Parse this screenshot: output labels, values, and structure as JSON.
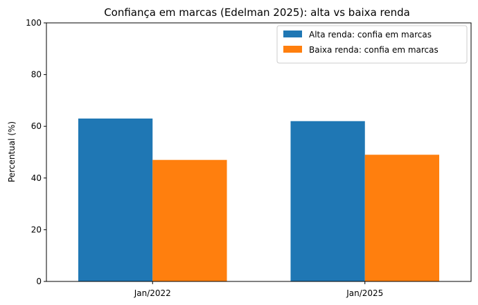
{
  "chart_data": {
    "type": "bar",
    "title": "Confiança em marcas (Edelman 2025): alta vs baixa renda",
    "xlabel": "",
    "ylabel": "Percentual (%)",
    "ylim": [
      0,
      100
    ],
    "yticks": [
      0,
      20,
      40,
      60,
      80,
      100
    ],
    "categories": [
      "Jan/2022",
      "Jan/2025"
    ],
    "series": [
      {
        "name": "Alta renda: confia em marcas",
        "values": [
          63,
          62
        ],
        "color": "#1f77b4"
      },
      {
        "name": "Baixa renda: confia em marcas",
        "values": [
          47,
          49
        ],
        "color": "#ff7f0e"
      }
    ],
    "legend_position": "top-right",
    "grid": false
  }
}
